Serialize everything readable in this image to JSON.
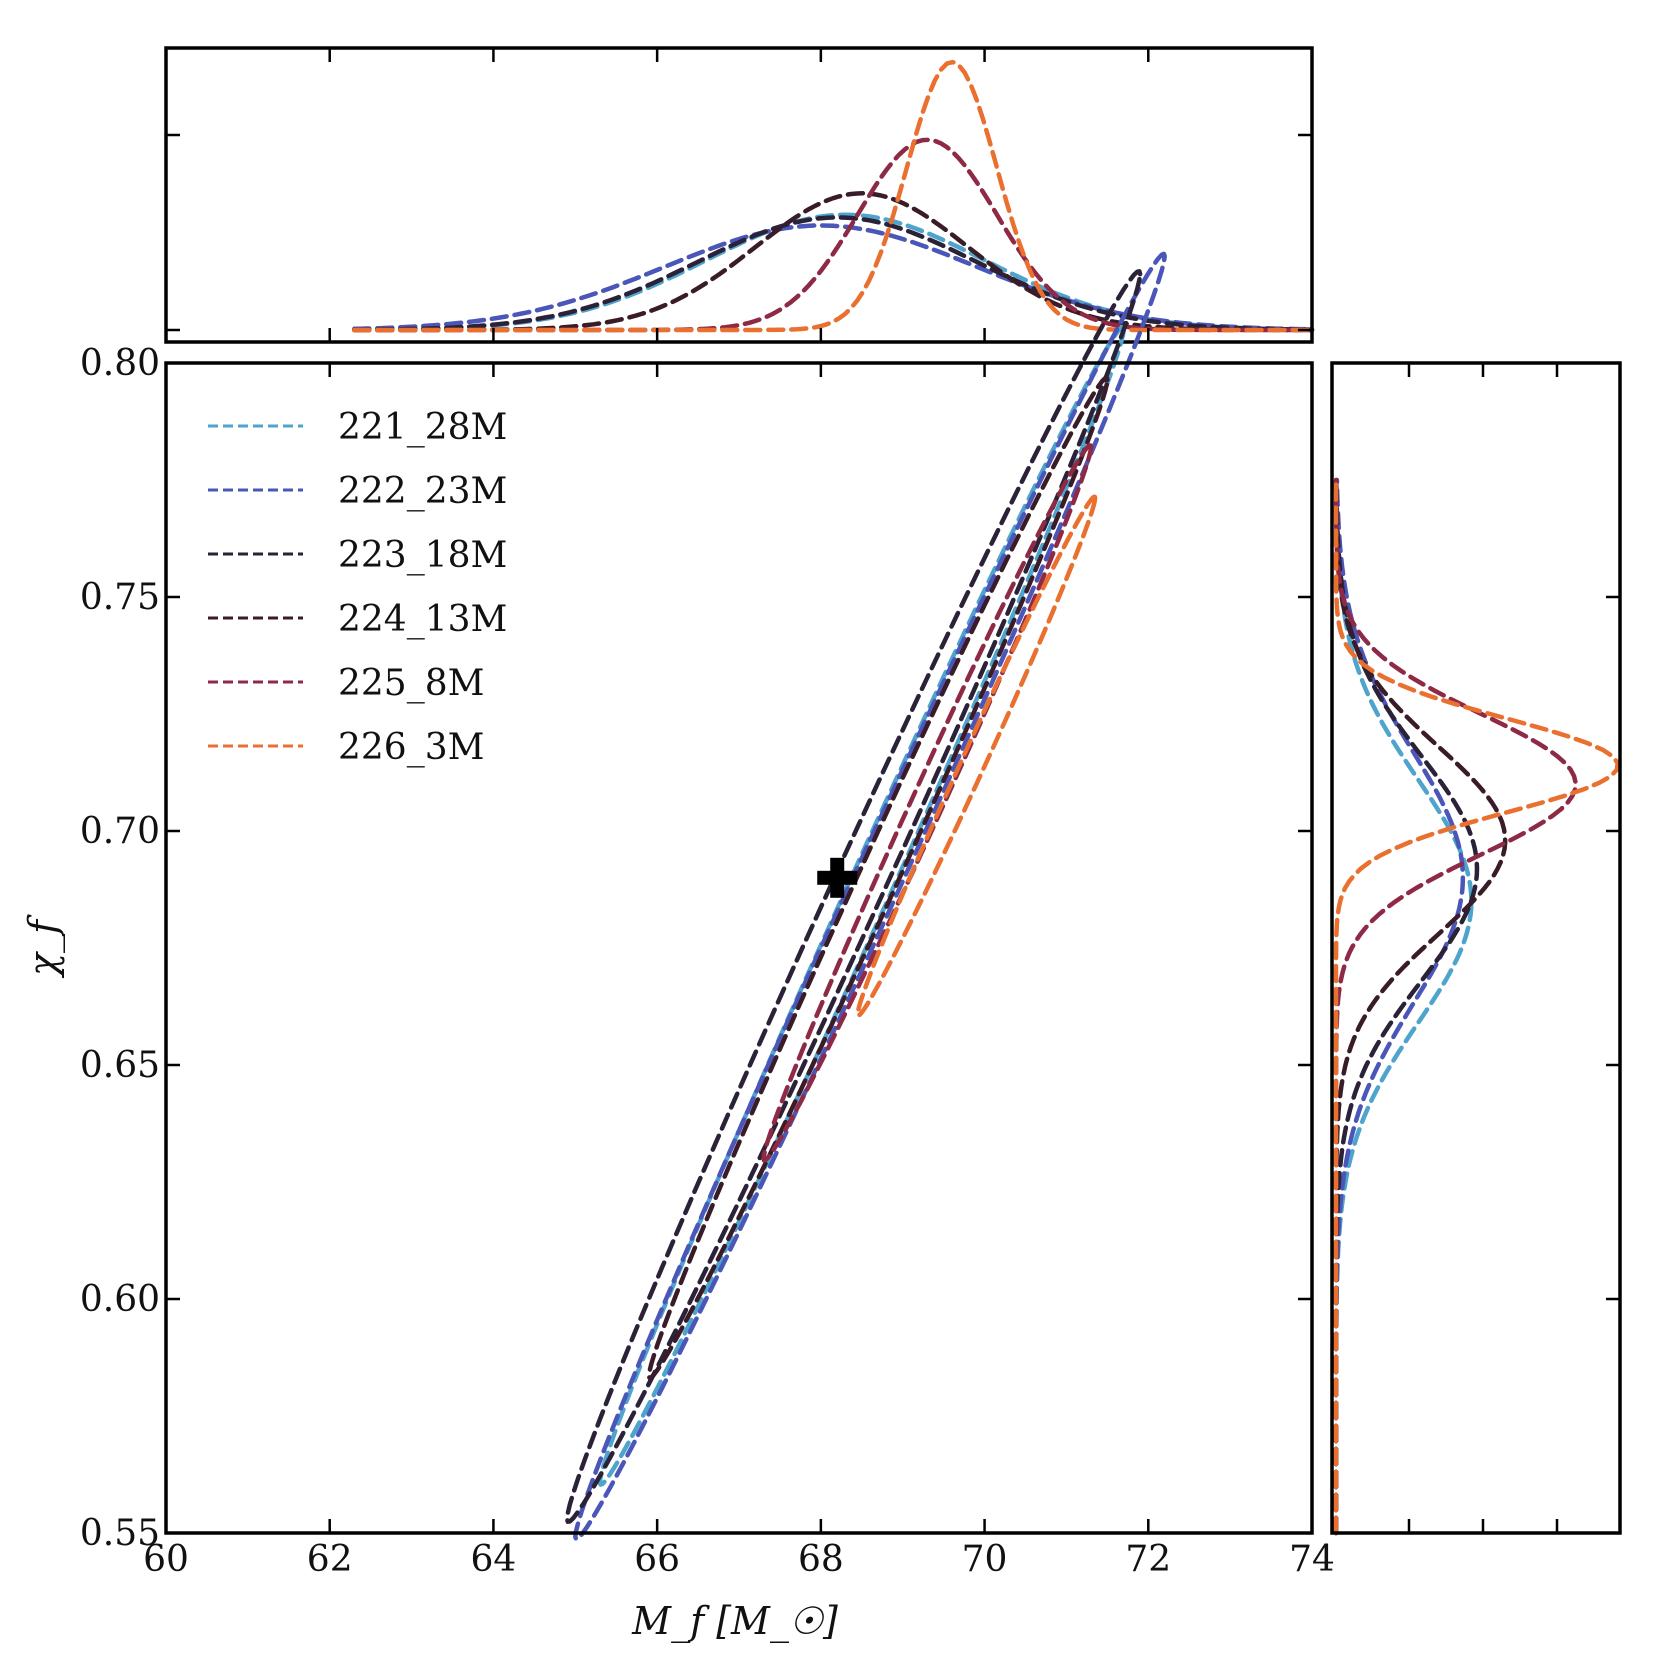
{
  "chart_data": {
    "type": "contour",
    "xlabel": "M_f [M_☉]",
    "ylabel": "χ_f",
    "xlim": [
      60,
      74
    ],
    "ylim": [
      0.55,
      0.8
    ],
    "xticks": [
      "60",
      "62",
      "64",
      "66",
      "68",
      "70",
      "72",
      "74"
    ],
    "yticks": [
      "0.55",
      "0.60",
      "0.65",
      "0.70",
      "0.75",
      "0.80"
    ],
    "true_value": {
      "x": 68.2,
      "y": 0.69
    },
    "series": [
      {
        "name": "221_28M",
        "color": "#4ea4cc",
        "contour": {
          "cx": 68.5,
          "cy": 0.684,
          "rx": 3.2,
          "ry": 0.011,
          "angle": 0.0385,
          "tilt": 1.0
        },
        "marginal_x": {
          "mu": 68.3,
          "sigma": 1.7,
          "peak": 0.43
        },
        "marginal_y": {
          "mu": 0.685,
          "sigma": 0.026,
          "peak": 0.48
        }
      },
      {
        "name": "222_23M",
        "color": "#4a56b8",
        "contour": {
          "cx": 68.6,
          "cy": 0.686,
          "rx": 3.6,
          "ry": 0.012,
          "angle": 0.038,
          "tilt": 1.0
        },
        "marginal_x": {
          "mu": 68.0,
          "sigma": 1.9,
          "peak": 0.39
        },
        "marginal_y": {
          "mu": 0.69,
          "sigma": 0.027,
          "peak": 0.45
        }
      },
      {
        "name": "223_18M",
        "color": "#2b2238",
        "contour": {
          "cx": 68.4,
          "cy": 0.686,
          "rx": 3.5,
          "ry": 0.013,
          "angle": 0.038,
          "tilt": 1.0
        },
        "marginal_x": {
          "mu": 68.2,
          "sigma": 1.7,
          "peak": 0.42
        },
        "marginal_y": {
          "mu": 0.692,
          "sigma": 0.024,
          "peak": 0.5
        }
      },
      {
        "name": "224_13M",
        "color": "#3a1c28",
        "contour": {
          "cx": 68.7,
          "cy": 0.69,
          "rx": 2.8,
          "ry": 0.01,
          "angle": 0.038,
          "tilt": 1.0
        },
        "marginal_x": {
          "mu": 68.5,
          "sigma": 1.3,
          "peak": 0.51
        },
        "marginal_y": {
          "mu": 0.698,
          "sigma": 0.02,
          "peak": 0.6
        }
      },
      {
        "name": "225_8M",
        "color": "#8e2a45",
        "contour": {
          "cx": 69.3,
          "cy": 0.706,
          "rx": 2.0,
          "ry": 0.008,
          "angle": 0.038,
          "tilt": 1.0
        },
        "marginal_x": {
          "mu": 69.3,
          "sigma": 0.85,
          "peak": 0.71
        },
        "marginal_y": {
          "mu": 0.71,
          "sigma": 0.015,
          "peak": 0.85
        }
      },
      {
        "name": "226_3M",
        "color": "#ea7030",
        "contour": {
          "cx": 69.9,
          "cy": 0.716,
          "rx": 1.45,
          "ry": 0.006,
          "angle": 0.038,
          "tilt": 1.0
        },
        "marginal_x": {
          "mu": 69.6,
          "sigma": 0.55,
          "peak": 1.0
        },
        "marginal_y": {
          "mu": 0.714,
          "sigma": 0.01,
          "peak": 1.0
        }
      }
    ]
  }
}
